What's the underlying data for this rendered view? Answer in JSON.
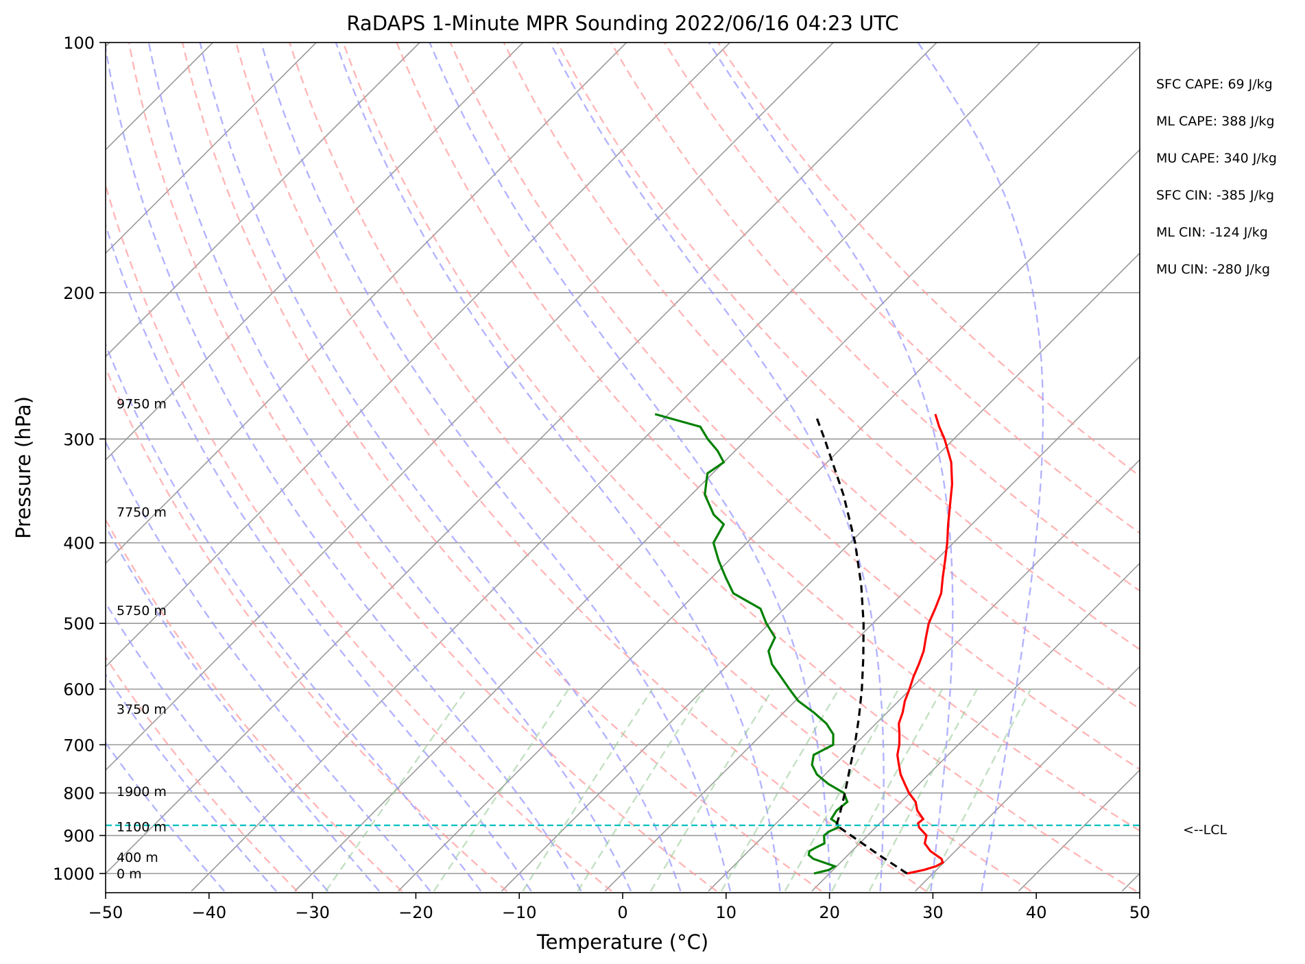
{
  "chart_data": {
    "type": "line",
    "subtype": "skew-T log-P",
    "title": "RaDAPS 1-Minute MPR Sounding 2022/06/16 04:23 UTC",
    "xlabel": "Temperature (°C)",
    "ylabel": "Pressure (hPa)",
    "xlim": [
      -50,
      50
    ],
    "ylim": [
      1050,
      100
    ],
    "y_scale": "log",
    "x_ticks": [
      -50,
      -40,
      -30,
      -20,
      -10,
      0,
      10,
      20,
      30,
      40,
      50
    ],
    "x_tick_labels": [
      "−50",
      "−40",
      "−30",
      "−20",
      "−10",
      "0",
      "10",
      "20",
      "30",
      "40",
      "50"
    ],
    "y_ticks": [
      100,
      200,
      300,
      400,
      500,
      600,
      700,
      800,
      900,
      1000
    ],
    "y_tick_labels": [
      "100",
      "200",
      "300",
      "400",
      "500",
      "600",
      "700",
      "800",
      "900",
      "1000"
    ],
    "grid": true,
    "colors": {
      "temperature": "#ff0000",
      "dewpoint": "#008000",
      "parcel": "#000000",
      "lcl": "#00bfbf",
      "dry_adiabats": "#ff9999",
      "moist_adiabats": "#9999ff",
      "mixing_ratio": "#99cc99",
      "isotherms": "#999999"
    },
    "series": [
      {
        "role": "temperature",
        "points": [
          [
            1000,
            27.5
          ],
          [
            990,
            28.8
          ],
          [
            980,
            29.6
          ],
          [
            970,
            29.9
          ],
          [
            960,
            29.4
          ],
          [
            940,
            27.6
          ],
          [
            920,
            26.3
          ],
          [
            900,
            25.7
          ],
          [
            880,
            24.2
          ],
          [
            870,
            23.7
          ],
          [
            860,
            23.8
          ],
          [
            840,
            22.4
          ],
          [
            820,
            21.4
          ],
          [
            800,
            19.9
          ],
          [
            780,
            18.6
          ],
          [
            760,
            17.3
          ],
          [
            740,
            16.2
          ],
          [
            720,
            15.1
          ],
          [
            700,
            14.3
          ],
          [
            680,
            13.3
          ],
          [
            660,
            12.2
          ],
          [
            640,
            11.5
          ],
          [
            620,
            10.6
          ],
          [
            600,
            9.9
          ],
          [
            580,
            9.1
          ],
          [
            560,
            8.4
          ],
          [
            540,
            7.6
          ],
          [
            520,
            6.5
          ],
          [
            500,
            5.4
          ],
          [
            480,
            4.6
          ],
          [
            460,
            3.7
          ],
          [
            440,
            2.3
          ],
          [
            420,
            0.9
          ],
          [
            400,
            -0.6
          ],
          [
            380,
            -2.3
          ],
          [
            360,
            -4.0
          ],
          [
            340,
            -5.8
          ],
          [
            320,
            -8.0
          ],
          [
            300,
            -10.9
          ],
          [
            290,
            -12.6
          ],
          [
            280,
            -14.2
          ]
        ]
      },
      {
        "role": "dewpoint",
        "points": [
          [
            1000,
            18.5
          ],
          [
            990,
            19.6
          ],
          [
            980,
            19.8
          ],
          [
            970,
            18.4
          ],
          [
            960,
            17.0
          ],
          [
            950,
            16.2
          ],
          [
            940,
            15.9
          ],
          [
            930,
            16.2
          ],
          [
            920,
            16.6
          ],
          [
            900,
            15.8
          ],
          [
            890,
            15.9
          ],
          [
            880,
            16.4
          ],
          [
            870,
            15.9
          ],
          [
            860,
            14.9
          ],
          [
            840,
            14.6
          ],
          [
            820,
            14.8
          ],
          [
            800,
            13.6
          ],
          [
            780,
            11.2
          ],
          [
            760,
            9.2
          ],
          [
            740,
            7.8
          ],
          [
            720,
            7.0
          ],
          [
            700,
            7.9
          ],
          [
            680,
            6.9
          ],
          [
            660,
            5.2
          ],
          [
            640,
            2.9
          ],
          [
            620,
            0.3
          ],
          [
            600,
            -1.7
          ],
          [
            580,
            -3.7
          ],
          [
            560,
            -5.8
          ],
          [
            540,
            -7.4
          ],
          [
            520,
            -8.1
          ],
          [
            500,
            -10.3
          ],
          [
            480,
            -12.3
          ],
          [
            460,
            -16.4
          ],
          [
            440,
            -18.7
          ],
          [
            420,
            -21.0
          ],
          [
            400,
            -23.2
          ],
          [
            380,
            -24.0
          ],
          [
            370,
            -25.9
          ],
          [
            350,
            -28.7
          ],
          [
            330,
            -30.5
          ],
          [
            320,
            -30.0
          ],
          [
            310,
            -31.7
          ],
          [
            300,
            -33.8
          ],
          [
            290,
            -35.7
          ],
          [
            280,
            -41.3
          ]
        ]
      },
      {
        "role": "parcel",
        "points": [
          [
            1000,
            27.5
          ],
          [
            950,
            23.0
          ],
          [
            900,
            18.4
          ],
          [
            875,
            16.0
          ],
          [
            850,
            15.3
          ],
          [
            800,
            13.7
          ],
          [
            750,
            11.9
          ],
          [
            700,
            10.0
          ],
          [
            650,
            7.8
          ],
          [
            600,
            5.3
          ],
          [
            550,
            2.4
          ],
          [
            500,
            -0.9
          ],
          [
            450,
            -4.8
          ],
          [
            400,
            -9.5
          ],
          [
            350,
            -15.3
          ],
          [
            300,
            -22.5
          ],
          [
            280,
            -25.8
          ]
        ]
      }
    ],
    "lcl_pressure": 875,
    "lcl_label": "<--LCL",
    "height_labels": [
      {
        "text": "0 m",
        "p": 1000
      },
      {
        "text": "400 m",
        "p": 955
      },
      {
        "text": "1100 m",
        "p": 878
      },
      {
        "text": "1900 m",
        "p": 796
      },
      {
        "text": "3750 m",
        "p": 634
      },
      {
        "text": "5750 m",
        "p": 482
      },
      {
        "text": "7750 m",
        "p": 367
      },
      {
        "text": "9750 m",
        "p": 272
      }
    ],
    "annotations": [
      "SFC CAPE: 69 J/kg",
      "ML CAPE: 388 J/kg",
      "MU CAPE: 340 J/kg",
      "SFC CIN: -385 J/kg",
      "ML CIN: -124 J/kg",
      "MU CIN: -280 J/kg"
    ],
    "dry_adiabat_thetas_K": [
      240,
      250,
      260,
      270,
      280,
      290,
      300,
      310,
      320,
      330,
      340,
      350,
      360,
      370,
      380,
      390
    ],
    "moist_adiabat_thetaw_C": [
      -40,
      -35,
      -30,
      -25,
      -20,
      -15,
      -10,
      -5,
      0,
      5,
      10,
      15,
      20,
      25,
      30,
      35
    ],
    "mixing_ratios_gkg": [
      0.4,
      1,
      2,
      3,
      5,
      8,
      12,
      16,
      20,
      28
    ]
  }
}
